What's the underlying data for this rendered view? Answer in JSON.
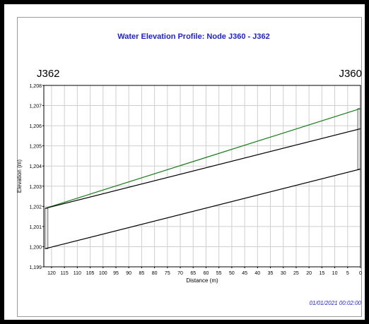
{
  "window": {
    "border_color": "#000000",
    "background": "#ffffff"
  },
  "chart_data": {
    "type": "line",
    "title": "Water Elevation Profile: Node J360 - J362",
    "xlabel": "Distance (m)",
    "ylabel": "Elevation (m)",
    "xlim": [
      123,
      0
    ],
    "ylim": [
      1199,
      1208
    ],
    "x_ticks": [
      120,
      115,
      110,
      105,
      100,
      95,
      90,
      85,
      80,
      75,
      70,
      65,
      60,
      55,
      50,
      45,
      40,
      35,
      30,
      25,
      20,
      15,
      10,
      5,
      0
    ],
    "y_ticks": [
      1199,
      1200,
      1201,
      1202,
      1203,
      1204,
      1205,
      1206,
      1207,
      1208
    ],
    "y_tick_labels": [
      "1,199",
      "1,200",
      "1,201",
      "1,202",
      "1,203",
      "1,204",
      "1,205",
      "1,206",
      "1,207",
      "1,208"
    ],
    "grid": true,
    "node_labels": [
      {
        "name": "J362",
        "x": 122.5
      },
      {
        "name": "J360",
        "x": 0
      }
    ],
    "series": [
      {
        "color": "#1a7a1a",
        "x": [
          122.5,
          0
        ],
        "y": [
          1201.9,
          1206.85
        ]
      },
      {
        "color": "#000000",
        "x": [
          122.5,
          0
        ],
        "y": [
          1201.9,
          1205.85
        ]
      },
      {
        "color": "#000000",
        "x": [
          122.5,
          0
        ],
        "y": [
          1199.9,
          1203.85
        ]
      }
    ],
    "nodes": [
      {
        "x": 122.5,
        "bottom": 1199.9,
        "top": 1201.9
      },
      {
        "x": 0,
        "bottom": 1203.85,
        "top": 1206.85
      }
    ],
    "timestamp": "01/01/2021 00:02:00",
    "colors": {
      "title": "#1f1fcc",
      "timestamp": "#1f1fcc",
      "grid": "#cfcfcf",
      "node_fill": "#e8e8e8"
    }
  }
}
